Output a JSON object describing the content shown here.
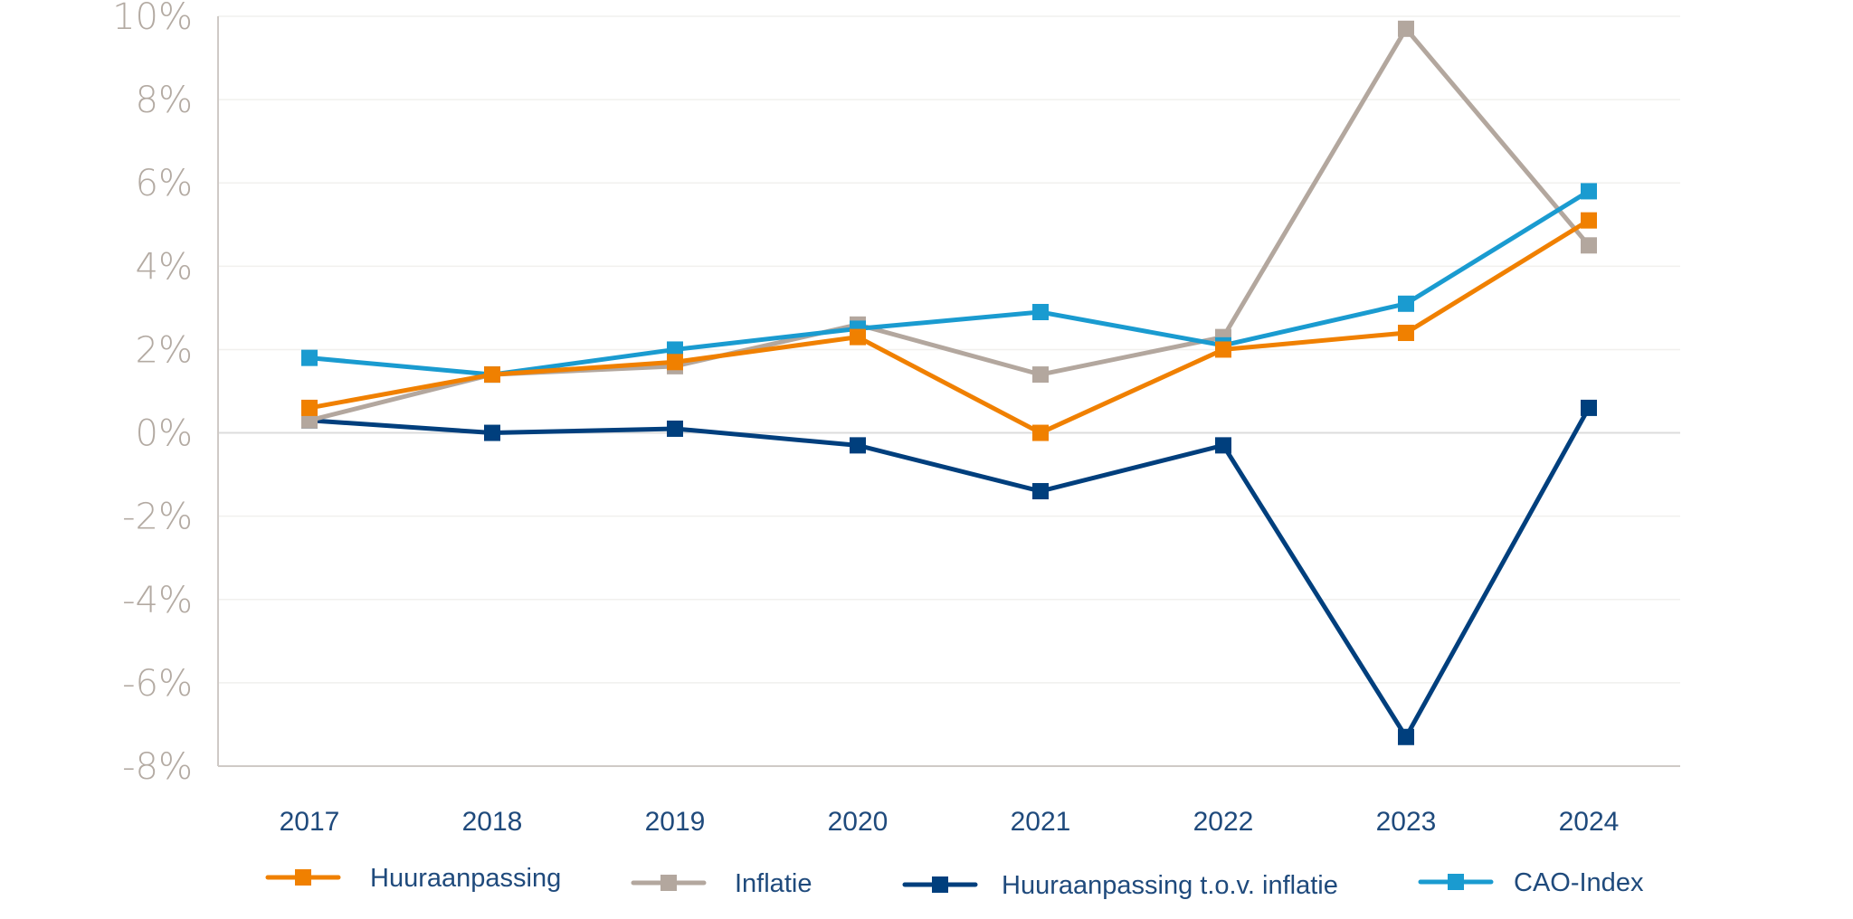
{
  "chart_data": {
    "type": "line",
    "title": "",
    "xlabel": "",
    "ylabel": "",
    "x": [
      "2017",
      "2018",
      "2019",
      "2020",
      "2021",
      "2022",
      "2023",
      "2024"
    ],
    "ylim": [
      -8,
      10
    ],
    "yticks": [
      10,
      8,
      6,
      4,
      2,
      0,
      -2,
      -4,
      -6,
      -8
    ],
    "ytick_labels": [
      "10%",
      "8%",
      "6%",
      "4%",
      "2%",
      "0%",
      "-2%",
      "-4%",
      "-6%",
      "-8%"
    ],
    "grid": true,
    "legend_position": "bottom",
    "series": [
      {
        "name": "Huuraanpassing",
        "color": "#f08000",
        "values": [
          0.6,
          1.4,
          1.7,
          2.3,
          0.0,
          2.0,
          2.4,
          5.1
        ]
      },
      {
        "name": "Inflatie",
        "color": "#b3a79e",
        "values": [
          0.3,
          1.4,
          1.6,
          2.6,
          1.4,
          2.3,
          9.7,
          4.5
        ]
      },
      {
        "name": "Huuraanpassing t.o.v. inflatie",
        "color": "#003f7d",
        "values": [
          0.3,
          0.0,
          0.1,
          -0.3,
          -1.4,
          -0.3,
          -7.3,
          0.6
        ]
      },
      {
        "name": "CAO-Index",
        "color": "#1a9bd0",
        "values": [
          1.8,
          1.4,
          2.0,
          2.5,
          2.9,
          2.1,
          3.1,
          5.8
        ]
      }
    ]
  }
}
